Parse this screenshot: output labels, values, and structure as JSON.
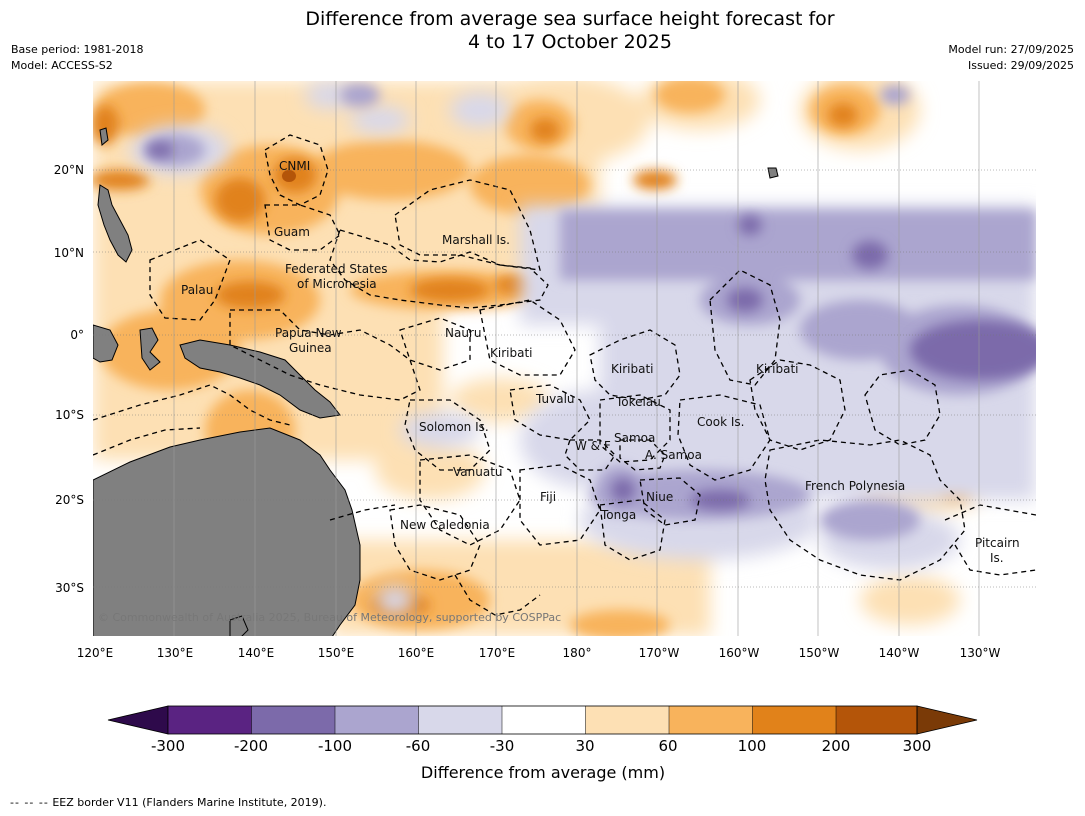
{
  "header": {
    "title_line1": "Difference from average sea surface height forecast for",
    "title_line2": "4 to 17 October 2025",
    "base_period": "Base period: 1981-2018",
    "model": "Model: ACCESS-S2",
    "model_run": "Model run: 27/09/2025",
    "issued": "Issued: 29/09/2025"
  },
  "map": {
    "copyright": "© Commonwealth of Australia 2025, Bureau of Meteorology, supported by COSPPac",
    "lon_labels": [
      "120°E",
      "130°E",
      "140°E",
      "150°E",
      "160°E",
      "170°E",
      "180°",
      "170°W",
      "160°W",
      "150°W",
      "140°W",
      "130°W"
    ],
    "lat_labels": [
      "20°N",
      "10°N",
      "0°",
      "10°S",
      "20°S",
      "30°S"
    ],
    "places": [
      {
        "name": "CNMI"
      },
      {
        "name": "Guam"
      },
      {
        "name": "Marshall Is."
      },
      {
        "name": "Federated States"
      },
      {
        "name": "of Micronesia"
      },
      {
        "name": "Palau"
      },
      {
        "name": "Papua New"
      },
      {
        "name": "Guinea"
      },
      {
        "name": "Nauru"
      },
      {
        "name": "Kiribati"
      },
      {
        "name": "Kiribati"
      },
      {
        "name": "Kiribati"
      },
      {
        "name": "Tuvalu"
      },
      {
        "name": "Tokelau"
      },
      {
        "name": "Cook Is."
      },
      {
        "name": "Solomon Is."
      },
      {
        "name": "Samoa"
      },
      {
        "name": "W & F"
      },
      {
        "name": "A. Samoa"
      },
      {
        "name": "Vanuatu"
      },
      {
        "name": "Fiji"
      },
      {
        "name": "Niue"
      },
      {
        "name": "Tonga"
      },
      {
        "name": "French Polynesia"
      },
      {
        "name": "New Caledonia"
      },
      {
        "name": "Pitcairn"
      },
      {
        "name": "Is."
      }
    ]
  },
  "colorbar": {
    "ticks": [
      "-300",
      "-200",
      "-100",
      "-60",
      "-30",
      "30",
      "60",
      "100",
      "200",
      "300"
    ],
    "colors": [
      "#5a2382",
      "#7c6aaa",
      "#aba5cf",
      "#d8d8ea",
      "#ffffff",
      "#fde0b4",
      "#f8b35c",
      "#e1821a",
      "#b45509"
    ],
    "under_color": "#2e0a4b",
    "over_color": "#7a3a07",
    "label": "Difference from average (mm)"
  },
  "footnote": {
    "symbol": "-- -- --",
    "text": "EEZ border V11 (Flanders Marine Institute, 2019)."
  }
}
